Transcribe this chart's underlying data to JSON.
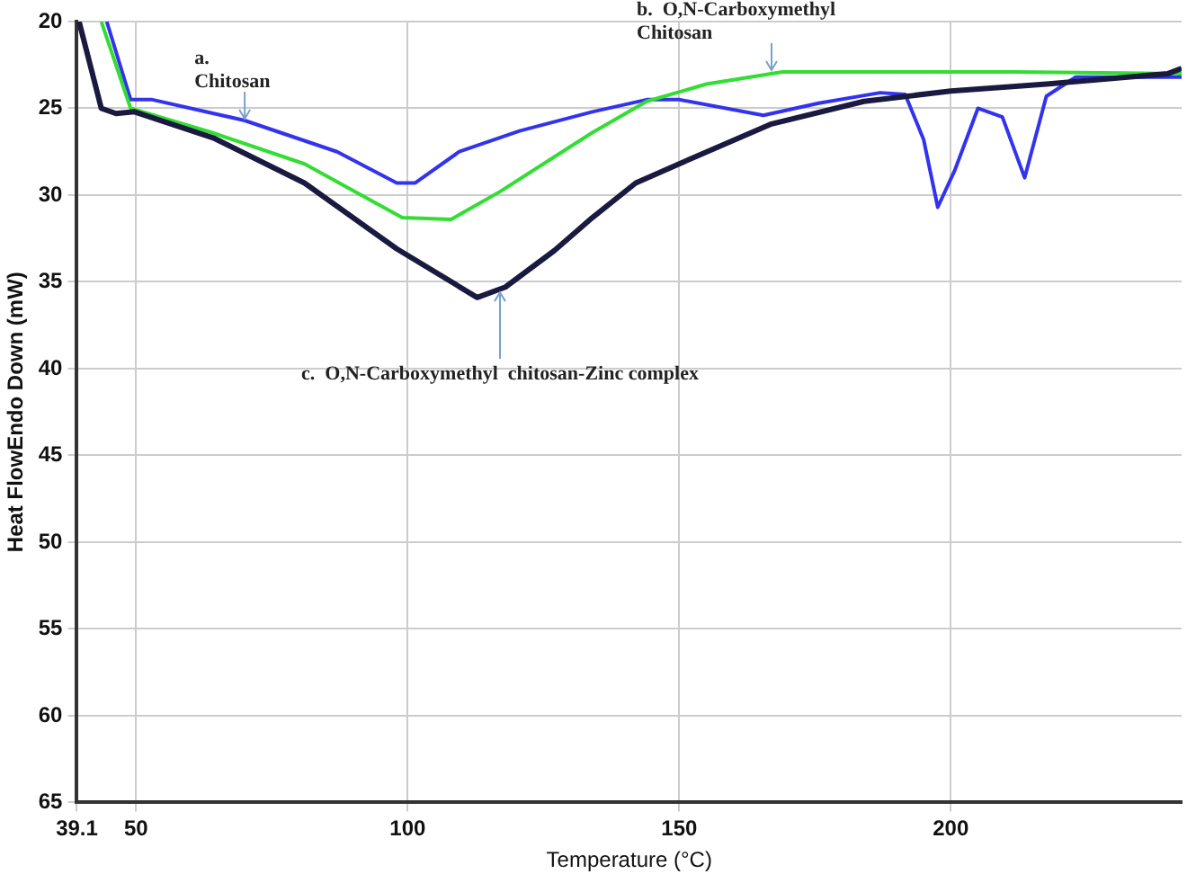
{
  "chart_data": {
    "type": "line",
    "xlabel": "Temperature (°C)",
    "ylabel": "Heat FlowEndo Down (mW)",
    "xlim": [
      39.1,
      242.5
    ],
    "xticks": [
      39.1,
      50,
      100,
      150,
      200
    ],
    "ylim": [
      65,
      20
    ],
    "yticks": [
      20,
      25,
      30,
      35,
      40,
      45,
      50,
      55,
      60,
      65
    ],
    "grid": true,
    "legend": false,
    "marker": "none",
    "line_style": "solid",
    "series": [
      {
        "color": "#3333ee",
        "x": [
          44.6,
          49,
          53,
          70,
          87,
          98,
          101.4,
          109.5,
          120.6,
          134,
          144,
          150,
          165.5,
          175.7,
          187,
          191.6,
          195,
          197.6,
          200.7,
          205,
          209.5,
          213.6,
          217.6,
          223,
          242.5
        ],
        "values": [
          20,
          24.5,
          24.5,
          25.7,
          27.5,
          29.3,
          29.3,
          27.5,
          26.3,
          25.2,
          24.5,
          24.5,
          25.4,
          24.7,
          24.1,
          24.2,
          26.8,
          30.7,
          28.6,
          25,
          25.5,
          29,
          24.3,
          23.2,
          23.2
        ]
      },
      {
        "color": "#33dd33",
        "x": [
          43.6,
          49,
          64,
          81,
          99,
          108,
          117,
          127,
          134,
          144,
          155,
          169,
          212,
          242.5
        ],
        "values": [
          20,
          25,
          26.4,
          28.2,
          31.3,
          31.4,
          29.8,
          27.8,
          26.4,
          24.6,
          23.6,
          22.9,
          22.9,
          23
        ]
      },
      {
        "color": "#1a1a40",
        "x": [
          39.5,
          43.6,
          46.3,
          49.7,
          64.2,
          81,
          98,
          112.8,
          118,
          127,
          134,
          142,
          150,
          167,
          184,
          200,
          217.6,
          240,
          242.5
        ],
        "values": [
          20,
          25,
          25.3,
          25.2,
          26.7,
          29.3,
          33.1,
          35.9,
          35.3,
          33.2,
          31.3,
          29.3,
          28.2,
          25.9,
          24.6,
          24,
          23.6,
          23,
          22.7
        ]
      }
    ],
    "annotations": [
      {
        "text": "a.\nChitosan",
        "x": 70,
        "y": 25.7
      },
      {
        "text": "b.  O,N-Carboxymethyl\nChitosan",
        "x": 167,
        "y": 22.9
      },
      {
        "text": "c.  O,N-Carboxymethyl  chitosan-Zinc complex",
        "x": 117,
        "y": 35.5
      }
    ]
  }
}
